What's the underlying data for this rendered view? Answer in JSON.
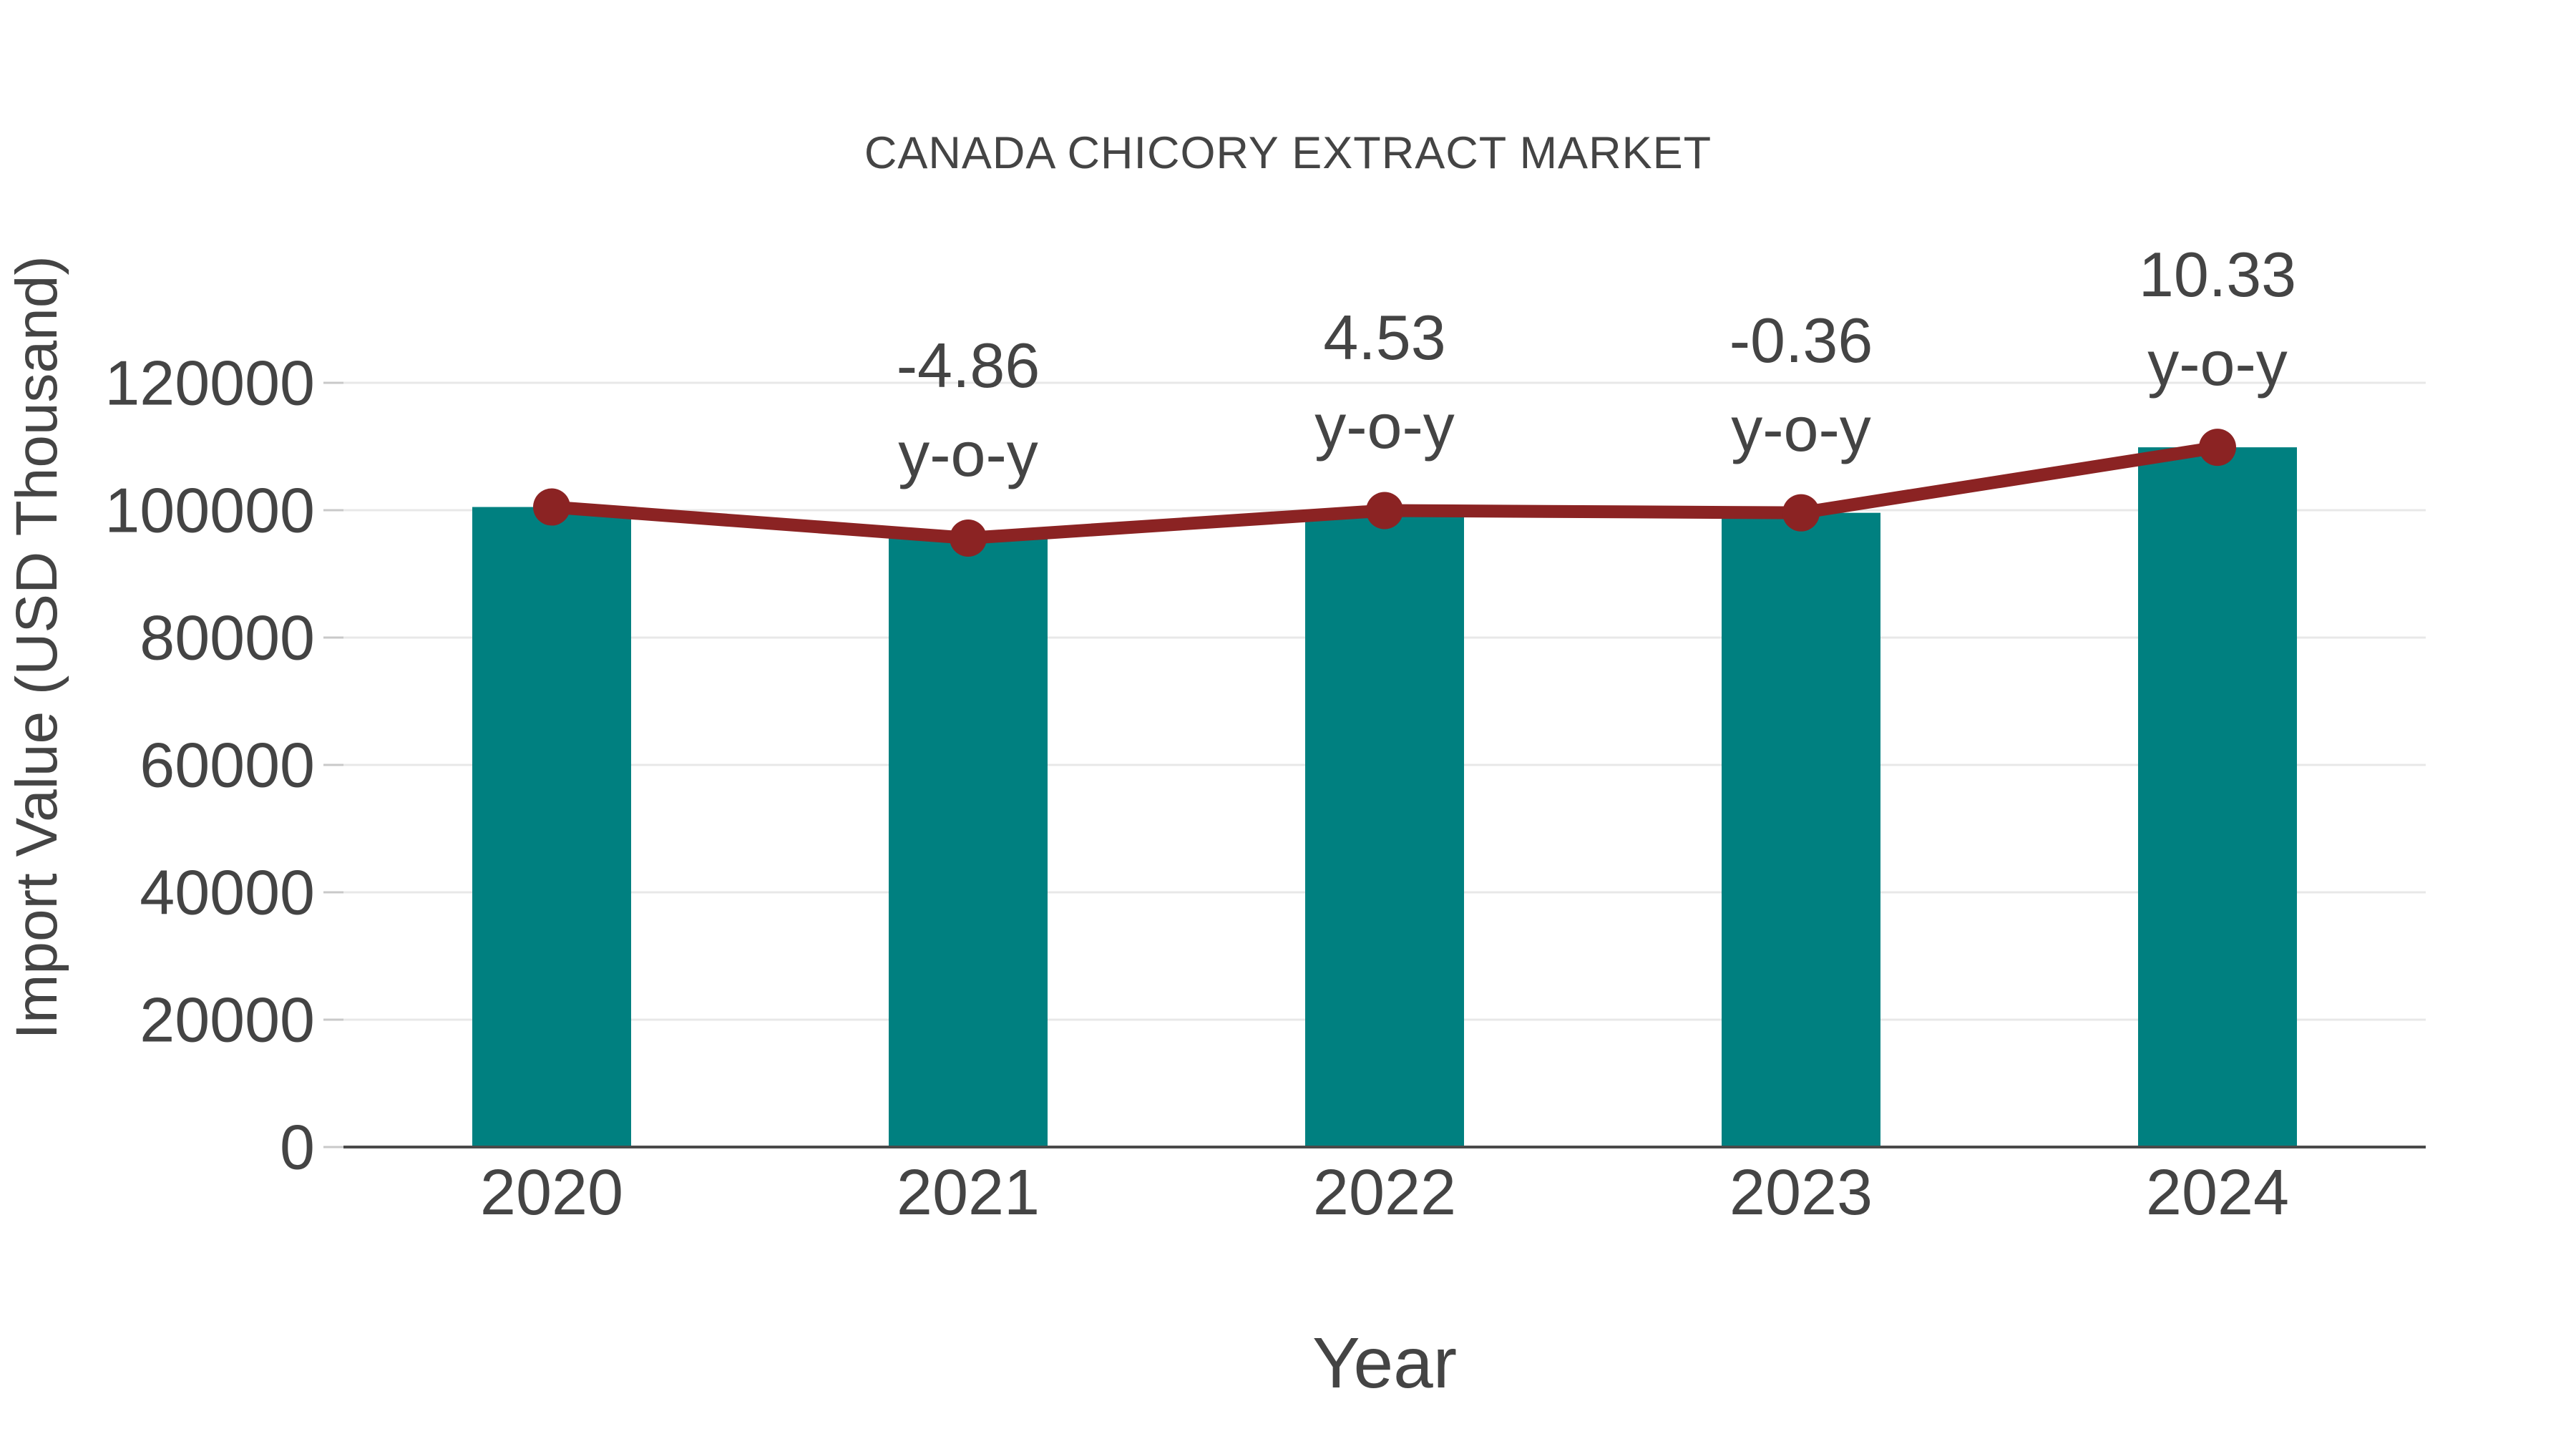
{
  "chart_data": {
    "type": "bar",
    "title": "CANADA CHICORY EXTRACT MARKET",
    "xlabel": "Year",
    "ylabel": "Import Value (USD Thousand)",
    "categories": [
      "2020",
      "2021",
      "2022",
      "2023",
      "2024"
    ],
    "series": [
      {
        "name": "Import Value (USD Thousand)",
        "type": "bar",
        "color": "#008080",
        "values": [
          100500,
          95616,
          99947,
          99588,
          109875
        ]
      },
      {
        "name": "Import Value trend",
        "type": "line",
        "color": "#8B2323",
        "values": [
          100500,
          95616,
          99947,
          99588,
          109875
        ]
      }
    ],
    "annotations": [
      {
        "category": "2021",
        "value": "-4.86",
        "label": "y-o-y"
      },
      {
        "category": "2022",
        "value": "4.53",
        "label": "y-o-y"
      },
      {
        "category": "2023",
        "value": "-0.36",
        "label": "y-o-y"
      },
      {
        "category": "2024",
        "value": "10.33",
        "label": "y-o-y"
      }
    ],
    "yticks": [
      0,
      20000,
      40000,
      60000,
      80000,
      100000,
      120000
    ],
    "ylim": [
      0,
      135000
    ],
    "grid": true,
    "legend": false,
    "colors": {
      "text": "#444444",
      "axis": "#4a4a4a",
      "grid": "#e8e8e8",
      "tick": "#c9c9c9",
      "background": "#ffffff"
    }
  }
}
